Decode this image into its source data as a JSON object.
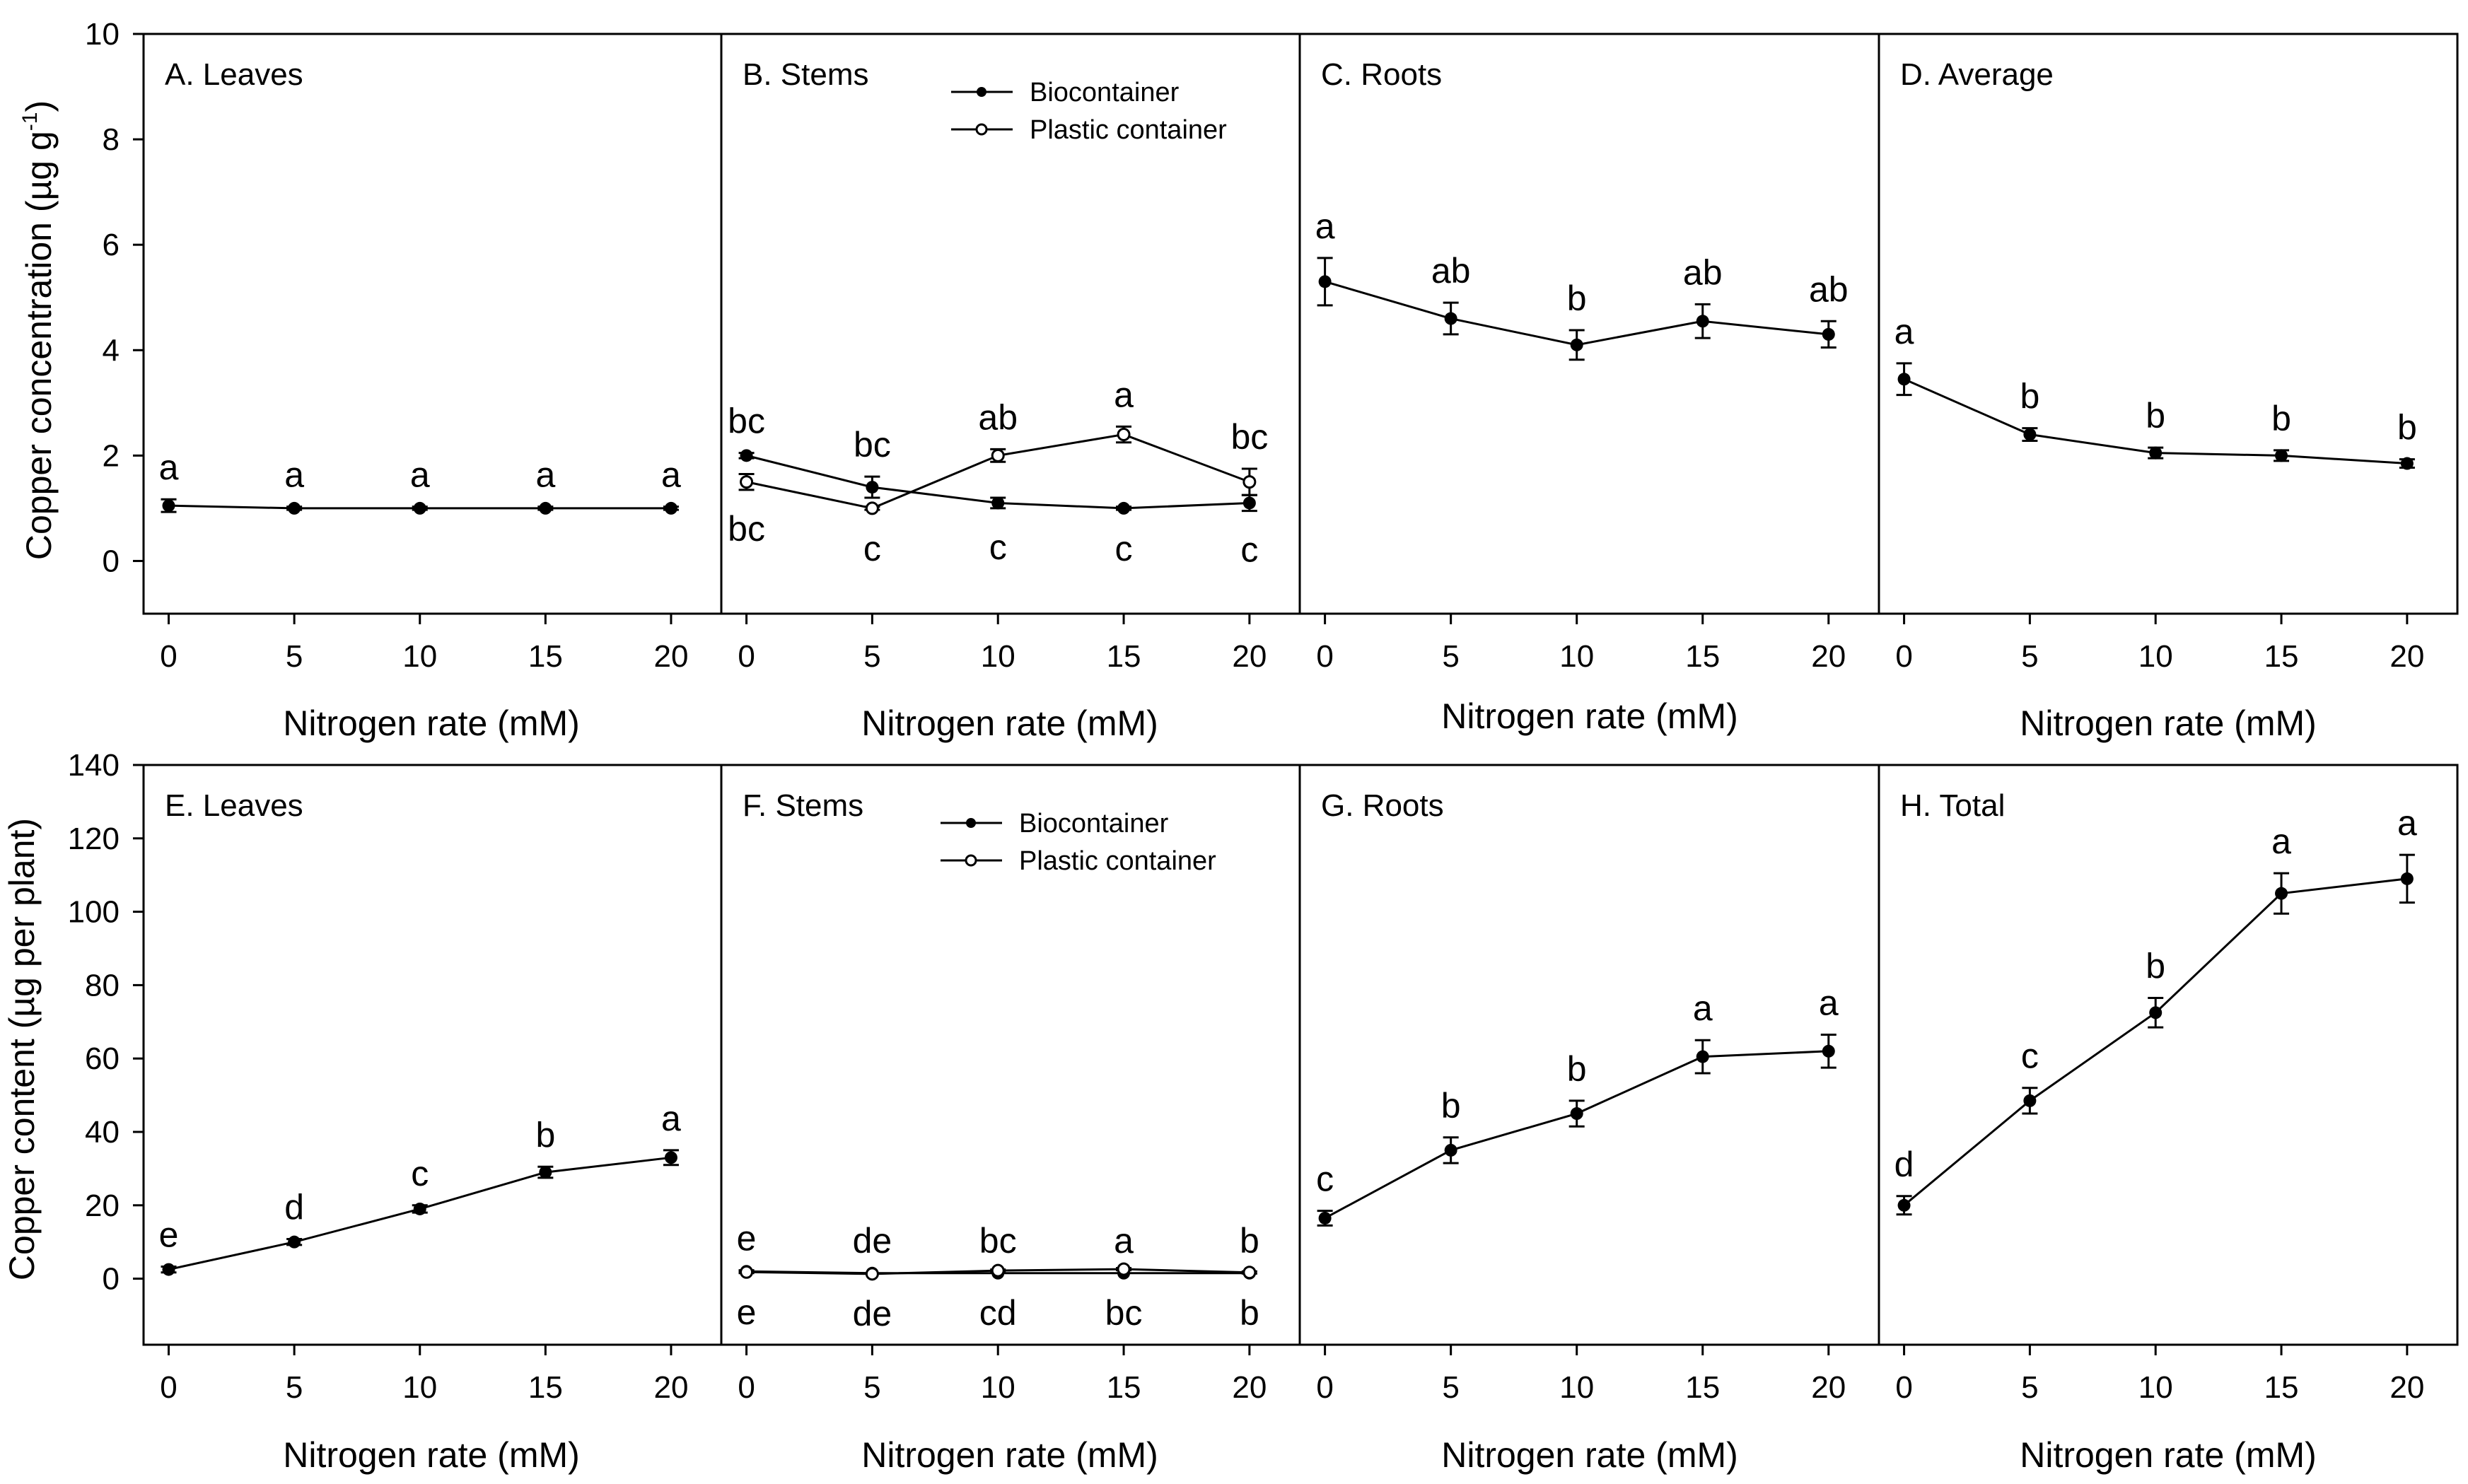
{
  "figure": {
    "top_row_ylabel": "Copper concentration (µg g",
    "top_row_ylabel_sup": "-1",
    "top_row_ylabel_end": ")",
    "bottom_row_ylabel": "Copper content (µg per plant)",
    "xlabel": "Nitrogen rate (mM)",
    "legend": {
      "bio": "Biocontainer",
      "plastic": "Plastic container"
    }
  },
  "chart_data": [
    {
      "type": "line",
      "title": "A. Leaves",
      "xlabel": "Nitrogen rate (mM)",
      "ylabel": "Copper concentration (µg g-1)",
      "x": [
        0,
        5,
        10,
        15,
        20
      ],
      "xlim": [
        -1,
        22
      ],
      "ylim": [
        -1,
        10
      ],
      "yticks": [
        0,
        2,
        4,
        6,
        8,
        10
      ],
      "series": [
        {
          "name": "Biocontainer",
          "marker": "filled",
          "values": [
            1.05,
            1.0,
            1.0,
            1.0,
            1.0
          ],
          "errors": [
            0.12,
            0.03,
            0.03,
            0.03,
            0.03
          ],
          "letters": [
            "a",
            "a",
            "a",
            "a",
            "a"
          ],
          "letter_side": "above"
        }
      ]
    },
    {
      "type": "line",
      "title": "B. Stems",
      "xlabel": "Nitrogen rate (mM)",
      "legend": true,
      "x": [
        0,
        5,
        10,
        15,
        20
      ],
      "xlim": [
        -1,
        22
      ],
      "ylim": [
        -1,
        10
      ],
      "yticks": [
        0,
        2,
        4,
        6,
        8,
        10
      ],
      "series": [
        {
          "name": "Biocontainer",
          "marker": "filled",
          "values": [
            2.0,
            1.4,
            1.1,
            1.0,
            1.1
          ],
          "errors": [
            0.05,
            0.2,
            0.1,
            0.03,
            0.15
          ],
          "letters": [
            "bc",
            "bc",
            "",
            "",
            ""
          ],
          "letter_side": "above"
        },
        {
          "name": "Plastic container",
          "marker": "open",
          "values": [
            1.5,
            1.0,
            2.0,
            2.4,
            1.5
          ],
          "errors": [
            0.15,
            0.03,
            0.12,
            0.15,
            0.25
          ],
          "letters": [
            "",
            "",
            "ab",
            "a",
            "bc"
          ],
          "letter_side": "above"
        }
      ],
      "lower_letters": [
        "bc",
        "c",
        "c",
        "c",
        "c"
      ]
    },
    {
      "type": "line",
      "title": "C. Roots",
      "xlabel": "Nitrogen rate (mM)",
      "x": [
        0,
        5,
        10,
        15,
        20
      ],
      "xlim": [
        -1,
        22
      ],
      "ylim": [
        -1,
        10
      ],
      "yticks": [
        0,
        2,
        4,
        6,
        8,
        10
      ],
      "series": [
        {
          "name": "Biocontainer",
          "marker": "filled",
          "values": [
            5.3,
            4.6,
            4.1,
            4.55,
            4.3
          ],
          "errors": [
            0.45,
            0.3,
            0.28,
            0.32,
            0.25
          ],
          "letters": [
            "a",
            "ab",
            "b",
            "ab",
            "ab"
          ],
          "letter_side": "above"
        }
      ]
    },
    {
      "type": "line",
      "title": "D. Average",
      "xlabel": "Nitrogen rate (mM)",
      "x": [
        0,
        5,
        10,
        15,
        20
      ],
      "xlim": [
        -1,
        22
      ],
      "ylim": [
        -1,
        10
      ],
      "yticks": [
        0,
        2,
        4,
        6,
        8,
        10
      ],
      "series": [
        {
          "name": "Biocontainer",
          "marker": "filled",
          "values": [
            3.45,
            2.4,
            2.05,
            2.0,
            1.85
          ],
          "errors": [
            0.3,
            0.12,
            0.1,
            0.1,
            0.08
          ],
          "letters": [
            "a",
            "b",
            "b",
            "b",
            "b"
          ],
          "letter_side": "above"
        }
      ]
    },
    {
      "type": "line",
      "title": "E. Leaves",
      "xlabel": "Nitrogen rate (mM)",
      "ylabel": "Copper content (µg per plant)",
      "x": [
        0,
        5,
        10,
        15,
        20
      ],
      "xlim": [
        -1,
        22
      ],
      "ylim": [
        -18,
        140
      ],
      "yticks": [
        0,
        20,
        40,
        60,
        80,
        100,
        120,
        140
      ],
      "series": [
        {
          "name": "Biocontainer",
          "marker": "filled",
          "values": [
            2.5,
            10,
            19,
            29,
            33
          ],
          "errors": [
            0.8,
            0.8,
            1.0,
            1.5,
            2.0
          ],
          "letters": [
            "e",
            "d",
            "c",
            "b",
            "a"
          ],
          "letter_side": "above"
        }
      ]
    },
    {
      "type": "line",
      "title": "F. Stems",
      "xlabel": "Nitrogen rate (mM)",
      "legend": true,
      "x": [
        0,
        5,
        10,
        15,
        20
      ],
      "xlim": [
        -1,
        22
      ],
      "ylim": [
        -18,
        140
      ],
      "yticks": [
        0,
        20,
        40,
        60,
        80,
        100,
        120,
        140
      ],
      "series": [
        {
          "name": "Biocontainer",
          "marker": "filled",
          "values": [
            2.0,
            1.5,
            1.5,
            1.5,
            1.5
          ],
          "errors": [
            0.3,
            0.2,
            0.2,
            0.2,
            0.2
          ],
          "letters": [
            "e",
            "de",
            "bc",
            "a",
            "b"
          ],
          "letter_side": "above"
        },
        {
          "name": "Plastic container",
          "marker": "open",
          "values": [
            1.8,
            1.3,
            2.2,
            2.6,
            1.7
          ],
          "errors": [
            0.3,
            0.2,
            0.3,
            0.3,
            0.3
          ],
          "letters": [
            "",
            "",
            "",
            "",
            ""
          ],
          "letter_side": "above"
        }
      ],
      "lower_letters": [
        "e",
        "de",
        "cd",
        "bc",
        "b"
      ]
    },
    {
      "type": "line",
      "title": "G. Roots",
      "xlabel": "Nitrogen rate (mM)",
      "x": [
        0,
        5,
        10,
        15,
        20
      ],
      "xlim": [
        -1,
        22
      ],
      "ylim": [
        -18,
        140
      ],
      "yticks": [
        0,
        20,
        40,
        60,
        80,
        100,
        120,
        140
      ],
      "series": [
        {
          "name": "Biocontainer",
          "marker": "filled",
          "values": [
            16.5,
            35,
            45,
            60.5,
            62
          ],
          "errors": [
            2.0,
            3.5,
            3.5,
            4.5,
            4.5
          ],
          "letters": [
            "c",
            "b",
            "b",
            "a",
            "a"
          ],
          "letter_side": "above"
        }
      ]
    },
    {
      "type": "line",
      "title": "H. Total",
      "xlabel": "Nitrogen rate (mM)",
      "x": [
        0,
        5,
        10,
        15,
        20
      ],
      "xlim": [
        -1,
        22
      ],
      "ylim": [
        -18,
        140
      ],
      "yticks": [
        0,
        20,
        40,
        60,
        80,
        100,
        120,
        140
      ],
      "series": [
        {
          "name": "Biocontainer",
          "marker": "filled",
          "values": [
            20,
            48.5,
            72.5,
            105,
            109
          ],
          "errors": [
            2.5,
            3.5,
            4.0,
            5.5,
            6.5
          ],
          "letters": [
            "d",
            "c",
            "b",
            "a",
            "a"
          ],
          "letter_side": "above"
        }
      ]
    }
  ]
}
